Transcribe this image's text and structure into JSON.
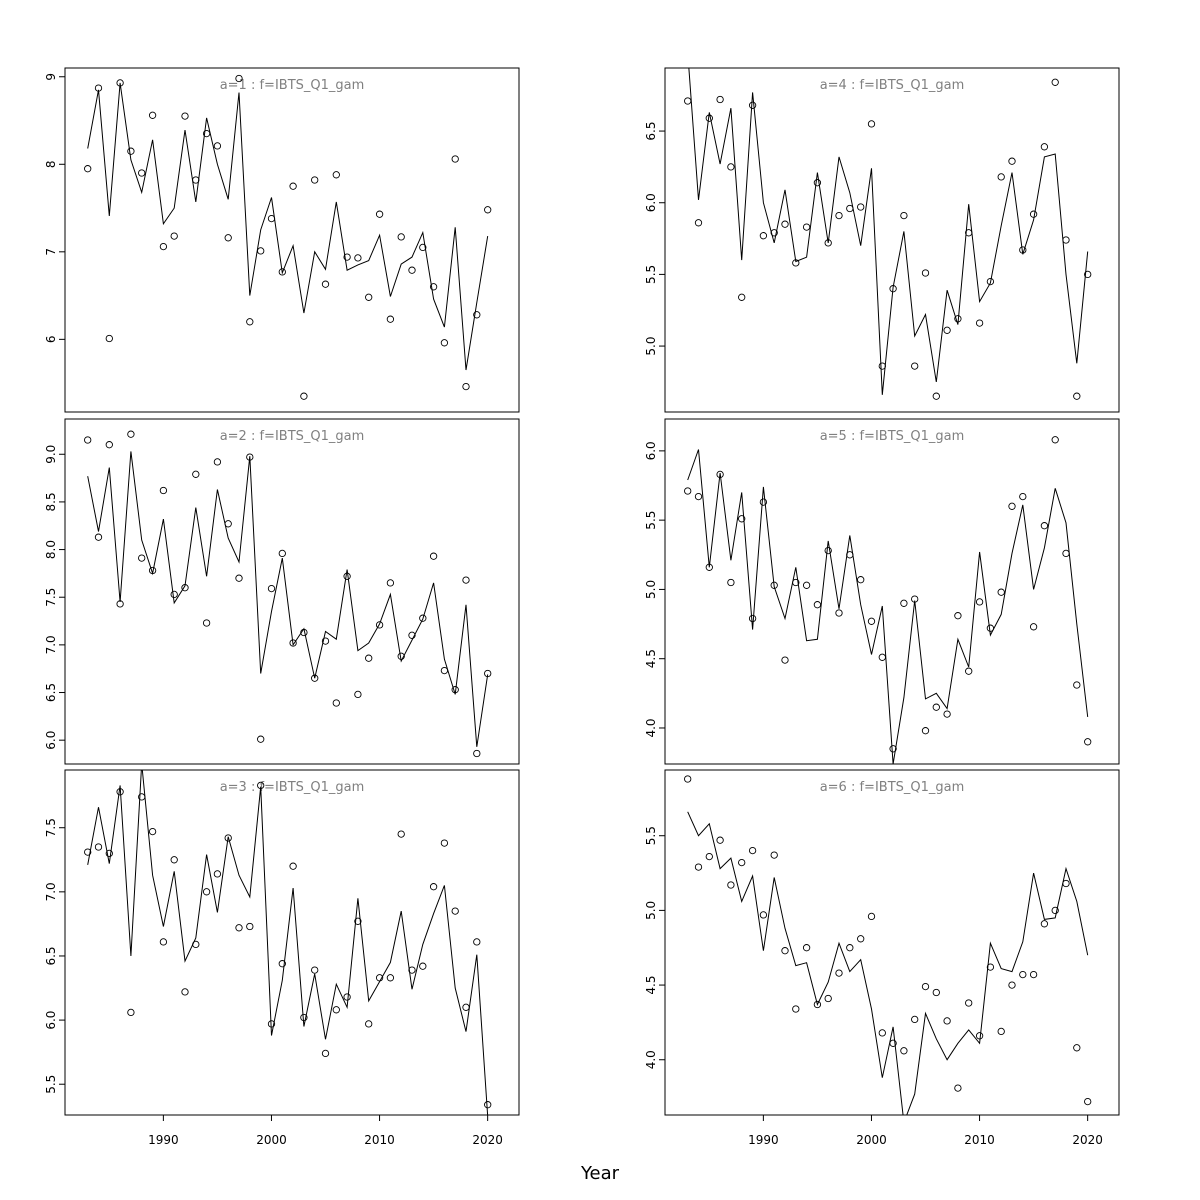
{
  "xlabel": "Year",
  "colors": {
    "series": "#000000",
    "title": "#808080",
    "frame": "#000000",
    "background": "#ffffff"
  },
  "chart_data": [
    {
      "type": "line",
      "title": "a=1  :  f=IBTS_Q1_gam",
      "x": [
        1983,
        1984,
        1985,
        1986,
        1987,
        1988,
        1989,
        1990,
        1991,
        1992,
        1993,
        1994,
        1995,
        1996,
        1997,
        1998,
        1999,
        2000,
        2001,
        2002,
        2003,
        2004,
        2005,
        2006,
        2007,
        2008,
        2009,
        2010,
        2011,
        2012,
        2013,
        2014,
        2015,
        2016,
        2017,
        2018,
        2019,
        2020
      ],
      "xlim": [
        1980.9,
        2022.9
      ],
      "ylim": [
        5.17,
        9.1
      ],
      "yticks": [
        6,
        7,
        8,
        9
      ],
      "series": [
        {
          "type": "points",
          "values": [
            7.95,
            8.87,
            6.01,
            8.93,
            8.15,
            7.9,
            8.56,
            7.06,
            7.18,
            8.55,
            7.82,
            8.35,
            8.21,
            7.16,
            8.98,
            6.2,
            7.01,
            7.38,
            6.77,
            7.75,
            5.35,
            7.82,
            6.63,
            7.88,
            6.94,
            6.93,
            6.48,
            7.43,
            6.23,
            7.17,
            6.79,
            7.05,
            6.6,
            5.96,
            8.06,
            5.46,
            6.28,
            7.48
          ]
        },
        {
          "type": "line",
          "values": [
            8.18,
            8.85,
            7.41,
            8.93,
            8.05,
            7.68,
            8.28,
            7.32,
            7.5,
            8.39,
            7.57,
            8.53,
            8.0,
            7.6,
            8.82,
            6.5,
            7.25,
            7.62,
            6.76,
            7.07,
            6.3,
            7.0,
            6.8,
            7.57,
            6.79,
            6.85,
            6.9,
            7.19,
            6.49,
            6.86,
            6.94,
            7.22,
            6.46,
            6.14,
            7.28,
            5.65,
            6.42,
            7.18
          ]
        }
      ]
    },
    {
      "type": "line",
      "title": "a=4  :  f=IBTS_Q1_gam",
      "x": [
        1983,
        1984,
        1985,
        1986,
        1987,
        1988,
        1989,
        1990,
        1991,
        1992,
        1993,
        1994,
        1995,
        1996,
        1997,
        1998,
        1999,
        2000,
        2001,
        2002,
        2003,
        2004,
        2005,
        2006,
        2007,
        2008,
        2009,
        2010,
        2011,
        2012,
        2013,
        2014,
        2015,
        2016,
        2017,
        2018,
        2019,
        2020
      ],
      "xlim": [
        1980.9,
        2022.9
      ],
      "ylim": [
        4.54,
        6.94
      ],
      "yticks": [
        5.0,
        5.5,
        6.0,
        6.5
      ],
      "series": [
        {
          "type": "points",
          "values": [
            6.71,
            5.86,
            6.59,
            6.72,
            6.25,
            5.34,
            6.68,
            5.77,
            5.79,
            5.85,
            5.58,
            5.83,
            6.14,
            5.72,
            5.91,
            5.96,
            5.97,
            6.55,
            4.86,
            5.4,
            5.91,
            4.86,
            5.51,
            4.65,
            5.11,
            5.19,
            5.79,
            5.16,
            5.45,
            6.18,
            6.29,
            5.67,
            5.92,
            6.39,
            6.84,
            5.74,
            4.65,
            5.5
          ]
        },
        {
          "type": "line",
          "values": [
            7.05,
            6.02,
            6.63,
            6.27,
            6.66,
            5.6,
            6.77,
            6.0,
            5.72,
            6.09,
            5.59,
            5.62,
            6.21,
            5.72,
            6.32,
            6.07,
            5.7,
            6.24,
            4.66,
            5.41,
            5.8,
            5.07,
            5.22,
            4.75,
            5.39,
            5.15,
            5.99,
            5.31,
            5.44,
            5.84,
            6.21,
            5.64,
            5.88,
            6.32,
            6.34,
            5.5,
            4.88,
            5.66
          ]
        }
      ]
    },
    {
      "type": "line",
      "title": "a=2  :  f=IBTS_Q1_gam",
      "x": [
        1983,
        1984,
        1985,
        1986,
        1987,
        1988,
        1989,
        1990,
        1991,
        1992,
        1993,
        1994,
        1995,
        1996,
        1997,
        1998,
        1999,
        2000,
        2001,
        2002,
        2003,
        2004,
        2005,
        2006,
        2007,
        2008,
        2009,
        2010,
        2011,
        2012,
        2013,
        2014,
        2015,
        2016,
        2017,
        2018,
        2019,
        2020
      ],
      "xlim": [
        1980.9,
        2022.9
      ],
      "ylim": [
        5.75,
        9.37
      ],
      "yticks": [
        6.0,
        6.5,
        7.0,
        7.5,
        8.0,
        8.5,
        9.0
      ],
      "series": [
        {
          "type": "points",
          "values": [
            9.15,
            8.13,
            9.1,
            7.43,
            9.21,
            7.91,
            7.78,
            8.62,
            7.53,
            7.6,
            8.79,
            7.23,
            8.92,
            8.27,
            7.7,
            8.97,
            6.01,
            7.59,
            7.96,
            7.02,
            7.13,
            6.65,
            7.04,
            6.39,
            7.72,
            6.48,
            6.86,
            7.21,
            7.65,
            6.88,
            7.1,
            7.28,
            7.93,
            6.73,
            6.53,
            7.68,
            5.86,
            6.7
          ]
        },
        {
          "type": "line",
          "values": [
            8.77,
            8.19,
            8.86,
            7.45,
            9.03,
            8.1,
            7.75,
            8.32,
            7.44,
            7.62,
            8.44,
            7.72,
            8.63,
            8.12,
            7.87,
            8.98,
            6.7,
            7.35,
            7.91,
            7.0,
            7.17,
            6.65,
            7.14,
            7.06,
            7.79,
            6.94,
            7.02,
            7.22,
            7.53,
            6.83,
            7.05,
            7.27,
            7.65,
            6.85,
            6.48,
            7.42,
            5.93,
            6.69
          ]
        }
      ]
    },
    {
      "type": "line",
      "title": "a=5  :  f=IBTS_Q1_gam",
      "x": [
        1983,
        1984,
        1985,
        1986,
        1987,
        1988,
        1989,
        1990,
        1991,
        1992,
        1993,
        1994,
        1995,
        1996,
        1997,
        1998,
        1999,
        2000,
        2001,
        2002,
        2003,
        2004,
        2005,
        2006,
        2007,
        2008,
        2009,
        2010,
        2011,
        2012,
        2013,
        2014,
        2015,
        2016,
        2017,
        2018,
        2019,
        2020
      ],
      "xlim": [
        1980.9,
        2022.9
      ],
      "ylim": [
        3.74,
        6.23
      ],
      "yticks": [
        4.0,
        4.5,
        5.0,
        5.5,
        6.0
      ],
      "series": [
        {
          "type": "points",
          "values": [
            5.71,
            5.67,
            5.16,
            5.83,
            5.05,
            5.51,
            4.79,
            5.63,
            5.03,
            4.49,
            5.05,
            5.03,
            4.89,
            5.28,
            4.83,
            5.25,
            5.07,
            4.77,
            4.51,
            3.85,
            4.9,
            4.93,
            3.98,
            4.15,
            4.1,
            4.81,
            4.41,
            4.91,
            4.72,
            4.98,
            5.6,
            5.67,
            4.73,
            5.46,
            6.08,
            5.26,
            4.31,
            3.9
          ]
        },
        {
          "type": "line",
          "values": [
            5.79,
            6.01,
            5.16,
            5.84,
            5.21,
            5.7,
            4.71,
            5.74,
            5.02,
            4.79,
            5.16,
            4.63,
            4.64,
            5.35,
            4.86,
            5.39,
            4.89,
            4.53,
            4.88,
            3.74,
            4.22,
            4.92,
            4.21,
            4.25,
            4.14,
            4.64,
            4.44,
            5.27,
            4.67,
            4.82,
            5.26,
            5.61,
            5.0,
            5.3,
            5.73,
            5.48,
            4.75,
            4.08
          ]
        }
      ]
    },
    {
      "type": "line",
      "title": "a=3  :  f=IBTS_Q1_gam",
      "x": [
        1983,
        1984,
        1985,
        1986,
        1987,
        1988,
        1989,
        1990,
        1991,
        1992,
        1993,
        1994,
        1995,
        1996,
        1997,
        1998,
        1999,
        2000,
        2001,
        2002,
        2003,
        2004,
        2005,
        2006,
        2007,
        2008,
        2009,
        2010,
        2011,
        2012,
        2013,
        2014,
        2015,
        2016,
        2017,
        2018,
        2019,
        2020
      ],
      "xlim": [
        1980.9,
        2022.9
      ],
      "ylim": [
        5.26,
        7.95
      ],
      "yticks": [
        5.5,
        6.0,
        6.5,
        7.0,
        7.5
      ],
      "series": [
        {
          "type": "points",
          "values": [
            7.31,
            7.35,
            7.3,
            7.78,
            6.06,
            7.74,
            7.47,
            6.61,
            7.25,
            6.22,
            6.59,
            7.0,
            7.14,
            7.42,
            6.72,
            6.73,
            7.83,
            5.97,
            6.44,
            7.2,
            6.02,
            6.39,
            5.74,
            6.08,
            6.18,
            6.77,
            5.97,
            6.33,
            6.33,
            7.45,
            6.39,
            6.42,
            7.04,
            7.38,
            6.85,
            6.1,
            6.61,
            5.34
          ]
        },
        {
          "type": "line",
          "values": [
            7.21,
            7.66,
            7.22,
            7.83,
            6.5,
            8.0,
            7.13,
            6.73,
            7.16,
            6.46,
            6.64,
            7.29,
            6.84,
            7.43,
            7.13,
            6.96,
            7.82,
            5.88,
            6.31,
            7.03,
            5.95,
            6.36,
            5.85,
            6.28,
            6.1,
            6.95,
            6.15,
            6.3,
            6.45,
            6.85,
            6.24,
            6.59,
            6.83,
            7.05,
            6.25,
            5.91,
            6.51,
            5.25
          ]
        }
      ]
    },
    {
      "type": "line",
      "title": "a=6  :  f=IBTS_Q1_gam",
      "x": [
        1983,
        1984,
        1985,
        1986,
        1987,
        1988,
        1989,
        1990,
        1991,
        1992,
        1993,
        1994,
        1995,
        1996,
        1997,
        1998,
        1999,
        2000,
        2001,
        2002,
        2003,
        2004,
        2005,
        2006,
        2007,
        2008,
        2009,
        2010,
        2011,
        2012,
        2013,
        2014,
        2015,
        2016,
        2017,
        2018,
        2019,
        2020
      ],
      "xlim": [
        1980.9,
        2022.9
      ],
      "ylim": [
        3.63,
        5.94
      ],
      "yticks": [
        4.0,
        4.5,
        5.0,
        5.5
      ],
      "series": [
        {
          "type": "points",
          "values": [
            5.88,
            5.29,
            5.36,
            5.47,
            5.17,
            5.32,
            5.4,
            4.97,
            5.37,
            4.73,
            4.34,
            4.75,
            4.37,
            4.41,
            4.58,
            4.75,
            4.81,
            4.96,
            4.18,
            4.11,
            4.06,
            4.27,
            4.49,
            4.45,
            4.26,
            3.81,
            4.38,
            4.16,
            4.62,
            4.19,
            4.5,
            4.57,
            4.57,
            4.91,
            5.0,
            5.18,
            4.08,
            3.72
          ]
        },
        {
          "type": "line",
          "values": [
            5.66,
            5.5,
            5.58,
            5.28,
            5.35,
            5.06,
            5.23,
            4.73,
            5.22,
            4.88,
            4.63,
            4.65,
            4.37,
            4.52,
            4.78,
            4.59,
            4.67,
            4.34,
            3.88,
            4.22,
            3.58,
            3.77,
            4.31,
            4.14,
            4.0,
            4.11,
            4.2,
            4.11,
            4.78,
            4.61,
            4.59,
            4.79,
            5.25,
            4.94,
            4.95,
            5.28,
            5.06,
            4.7
          ]
        }
      ]
    }
  ],
  "xticks": [
    1990,
    2000,
    2010,
    2020
  ]
}
